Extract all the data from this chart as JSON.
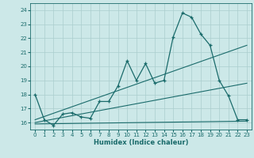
{
  "xlabel": "Humidex (Indice chaleur)",
  "bg_color": "#cce8e8",
  "grid_color": "#aacece",
  "line_color": "#1a6b6b",
  "xlim": [
    -0.5,
    23.5
  ],
  "ylim": [
    15.5,
    24.5
  ],
  "xticks": [
    0,
    1,
    2,
    3,
    4,
    5,
    6,
    7,
    8,
    9,
    10,
    11,
    12,
    13,
    14,
    15,
    16,
    17,
    18,
    19,
    20,
    21,
    22,
    23
  ],
  "yticks": [
    16,
    17,
    18,
    19,
    20,
    21,
    22,
    23,
    24
  ],
  "line1_x": [
    0,
    23
  ],
  "line1_y": [
    15.9,
    16.1
  ],
  "line2_x": [
    0,
    23
  ],
  "line2_y": [
    16.0,
    18.8
  ],
  "line3_x": [
    0,
    23
  ],
  "line3_y": [
    16.2,
    21.5
  ],
  "curve_x": [
    0,
    1,
    2,
    3,
    4,
    5,
    6,
    7,
    8,
    9,
    10,
    11,
    12,
    13,
    14,
    15,
    16,
    17,
    18,
    19,
    20,
    21,
    22,
    23
  ],
  "curve_y": [
    18.0,
    16.2,
    15.8,
    16.6,
    16.7,
    16.4,
    16.3,
    17.5,
    17.5,
    18.6,
    20.4,
    19.0,
    20.2,
    18.8,
    19.0,
    22.1,
    23.8,
    23.5,
    22.3,
    21.5,
    19.0,
    17.9,
    16.2,
    16.2
  ]
}
